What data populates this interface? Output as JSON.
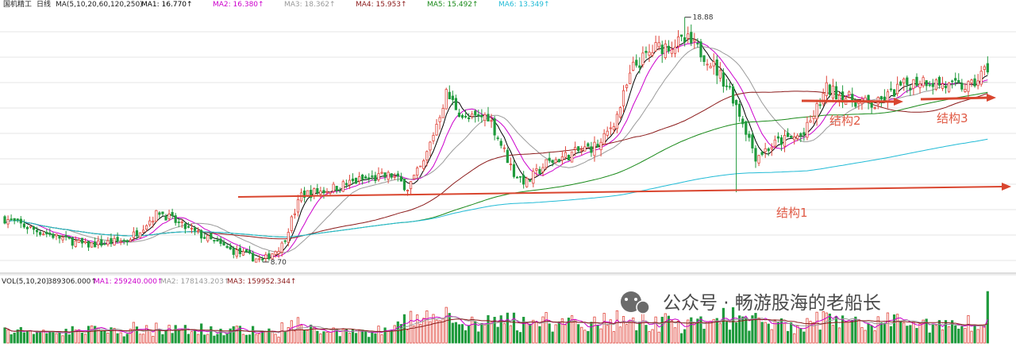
{
  "header": {
    "stock": "国机精工",
    "period": "日线",
    "ma_params": "MA(5,10,20,60,120,250)",
    "ma_values": [
      {
        "label": "MA1: 16.770↑",
        "color": "#000000"
      },
      {
        "label": "MA2: 16.380↑",
        "color": "#cc00cc"
      },
      {
        "label": "MA3: 18.362↑",
        "color": "#9a9a9a"
      },
      {
        "label": "MA4: 15.953↑",
        "color": "#8b1a1a"
      },
      {
        "label": "MA5: 15.492↑",
        "color": "#1a8a1a"
      },
      {
        "label": "MA6: 13.349↑",
        "color": "#22bbd6"
      }
    ]
  },
  "volume_header": {
    "label": "VOL(5,10,20)",
    "value": "389306.000↑",
    "ma_values": [
      {
        "label": "MA1: 259240.000↑",
        "color": "#cc00cc"
      },
      {
        "label": "MA2: 178143.203↑",
        "color": "#9a9a9a"
      },
      {
        "label": "MA3: 159952.344↑",
        "color": "#8b1a1a"
      }
    ]
  },
  "price_labels": {
    "high": "18.88",
    "low": "8.70"
  },
  "annotations": {
    "structure1": "结构1",
    "structure2": "结构2",
    "structure3": "结构3"
  },
  "watermark": {
    "text": "公众号 · 畅游股海的老船长"
  },
  "colors": {
    "up": "#e0443a",
    "down": "#1f9a3c",
    "arrow": "#d9452e",
    "grid": "#e6e6e6"
  },
  "chart_data": {
    "type": "candlestick",
    "series": [
      {
        "name": "MA1",
        "color": "#000000"
      },
      {
        "name": "MA2",
        "color": "#cc00cc"
      },
      {
        "name": "MA3",
        "color": "#9a9a9a"
      },
      {
        "name": "MA4",
        "color": "#8b1a1a"
      },
      {
        "name": "MA5",
        "color": "#1a8a1a"
      },
      {
        "name": "MA6",
        "color": "#22bbd6"
      }
    ],
    "price_range": [
      8.5,
      19.2
    ],
    "key_levels": {
      "high": 18.88,
      "low": 8.7
    },
    "close_keypoints": [
      [
        0,
        10.5
      ],
      [
        10,
        10.0
      ],
      [
        25,
        9.4
      ],
      [
        38,
        9.6
      ],
      [
        48,
        10.8
      ],
      [
        55,
        10.2
      ],
      [
        70,
        9.2
      ],
      [
        80,
        8.75
      ],
      [
        86,
        9.4
      ],
      [
        92,
        11.5
      ],
      [
        100,
        11.7
      ],
      [
        110,
        12.1
      ],
      [
        120,
        12.3
      ],
      [
        125,
        11.8
      ],
      [
        130,
        12.8
      ],
      [
        137,
        15.7
      ],
      [
        143,
        14.6
      ],
      [
        150,
        14.8
      ],
      [
        158,
        12.4
      ],
      [
        162,
        12.0
      ],
      [
        168,
        12.8
      ],
      [
        178,
        13.3
      ],
      [
        185,
        13.6
      ],
      [
        190,
        14.8
      ],
      [
        195,
        16.8
      ],
      [
        202,
        17.6
      ],
      [
        212,
        17.9
      ],
      [
        218,
        17.2
      ],
      [
        225,
        15.9
      ],
      [
        230,
        14.2
      ],
      [
        233,
        13.1
      ],
      [
        240,
        13.7
      ],
      [
        248,
        14.0
      ],
      [
        255,
        15.9
      ],
      [
        262,
        15.5
      ],
      [
        270,
        15.2
      ],
      [
        278,
        16.0
      ],
      [
        285,
        16.3
      ],
      [
        293,
        16.0
      ],
      [
        300,
        16.0
      ],
      [
        305,
        16.8
      ]
    ],
    "volume_range": [
      0,
      420000
    ]
  }
}
